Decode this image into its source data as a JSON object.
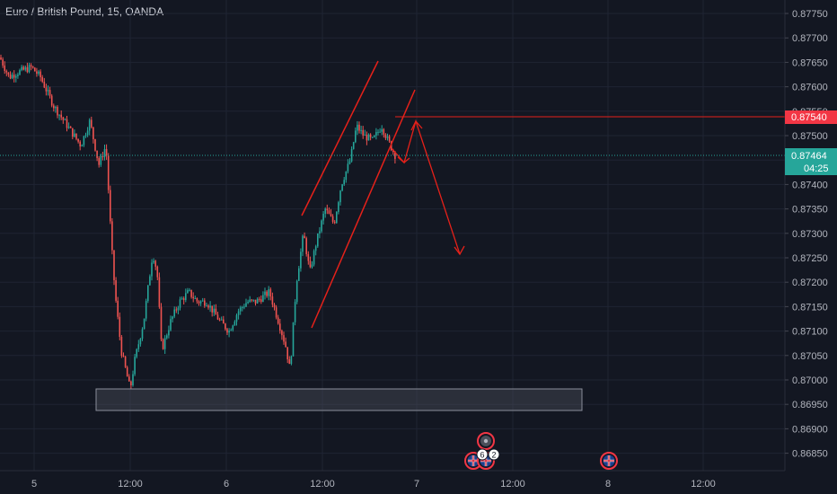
{
  "header": {
    "title": "Euro / British Pound, 15, OANDA"
  },
  "colors": {
    "background": "#131722",
    "grid": "#1f2433",
    "up": "#26a69a",
    "down": "#ef5350",
    "drawing": "#e5211a",
    "last_price": "#26a69a",
    "level_tag": "#f23645",
    "axis_text": "#b2b5be"
  },
  "price_axis": {
    "ticks": [
      "0.87750",
      "0.87700",
      "0.87650",
      "0.87600",
      "0.87550",
      "0.87500",
      "0.87450",
      "0.87400",
      "0.87350",
      "0.87300",
      "0.87250",
      "0.87200",
      "0.87150",
      "0.87100",
      "0.87050",
      "0.87000",
      "0.86950",
      "0.86900",
      "0.86850"
    ],
    "level_tag": "0.87540",
    "last_price_tag": "0.87464",
    "countdown_tag": "04:25"
  },
  "time_axis": {
    "ticks": [
      "5",
      "12:00",
      "6",
      "12:00",
      "7",
      "12:00",
      "8",
      "12:00"
    ]
  },
  "events": {
    "badge_counts": [
      "6",
      "2"
    ],
    "icons": [
      "globe-icon",
      "uk-flag-icon",
      "uk-flag-icon",
      "uk-flag-icon"
    ]
  },
  "drawings": {
    "channel": "rising-channel",
    "horizontal_level": "0.87540",
    "support_zone": [
      "0.86955",
      "0.87000"
    ],
    "projection": "down-arrow"
  }
}
